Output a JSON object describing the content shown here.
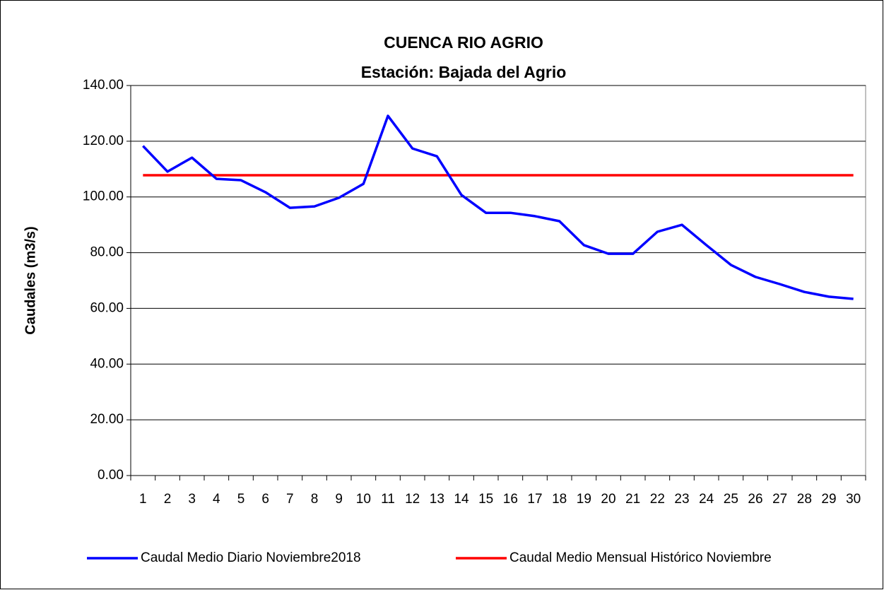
{
  "chart_data": {
    "type": "line",
    "title": "CUENCA RIO AGRIO",
    "subtitle": "Estación: Bajada del Agrio",
    "y_label": "Caudales (m3/s)",
    "categories": [
      "1",
      "2",
      "3",
      "4",
      "5",
      "6",
      "7",
      "8",
      "9",
      "10",
      "11",
      "12",
      "13",
      "14",
      "15",
      "16",
      "17",
      "18",
      "19",
      "20",
      "21",
      "22",
      "23",
      "24",
      "25",
      "26",
      "27",
      "28",
      "29",
      "30"
    ],
    "series": [
      {
        "name": "Caudal Medio Diario Noviembre2018",
        "color": "#0000ff",
        "values": [
          118.3,
          109.1,
          114.1,
          106.5,
          106.0,
          101.7,
          96.1,
          96.6,
          99.7,
          104.7,
          129.1,
          117.4,
          114.6,
          100.7,
          94.3,
          94.3,
          93.1,
          91.3,
          82.7,
          79.6,
          79.6,
          87.5,
          90.0,
          82.7,
          75.6,
          71.3,
          68.7,
          65.9,
          64.2,
          63.4
        ]
      },
      {
        "name": "Caudal Medio Mensual Histórico Noviembre",
        "color": "#ff0000",
        "values": [
          107.8,
          107.8,
          107.8,
          107.8,
          107.8,
          107.8,
          107.8,
          107.8,
          107.8,
          107.8,
          107.8,
          107.8,
          107.8,
          107.8,
          107.8,
          107.8,
          107.8,
          107.8,
          107.8,
          107.8,
          107.8,
          107.8,
          107.8,
          107.8,
          107.8,
          107.8,
          107.8,
          107.8,
          107.8,
          107.8
        ]
      }
    ],
    "ylim": [
      0,
      140
    ],
    "yticks": [
      {
        "value": 0,
        "label": "0.00"
      },
      {
        "value": 20,
        "label": "20.00"
      },
      {
        "value": 40,
        "label": "40.00"
      },
      {
        "value": 60,
        "label": "60.00"
      },
      {
        "value": 80,
        "label": "80.00"
      },
      {
        "value": 100,
        "label": "100.00"
      },
      {
        "value": 120,
        "label": "120.00"
      },
      {
        "value": 140,
        "label": "140.00"
      }
    ],
    "grid": true,
    "legend": "bottom"
  }
}
